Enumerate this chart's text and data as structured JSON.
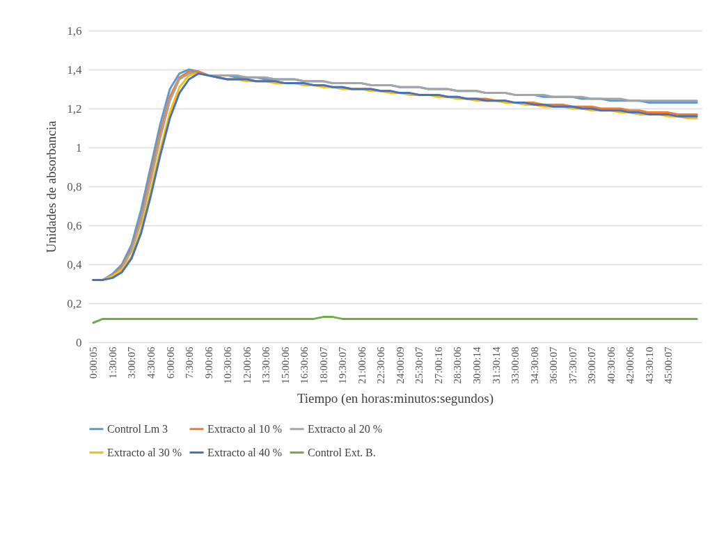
{
  "chart_data": {
    "type": "line",
    "xlabel": "Tiempo (en horas:minutos:segundos)",
    "ylabel": "Unidades de absorbancia",
    "categories": [
      "0:00:05",
      null,
      "1:30:06",
      null,
      "3:00:07",
      null,
      "4:30:06",
      null,
      "6:00:06",
      null,
      "7:30:06",
      null,
      "9:00:06",
      null,
      "10:30:06",
      null,
      "12:00:06",
      null,
      "13:30:06",
      null,
      "15:00:06",
      null,
      "16:30:06",
      null,
      "18:00:07",
      null,
      "19:30:07",
      null,
      "21:00:06",
      null,
      "22:30:06",
      null,
      "24:00:09",
      null,
      "25:30:07",
      null,
      "27:00:16",
      null,
      "28:30:06",
      null,
      "30:00:14",
      null,
      "31:30:14",
      null,
      "33:00:08",
      null,
      "34:30:08",
      null,
      "36:00:07",
      null,
      "37:30:07",
      null,
      "39:00:07",
      null,
      "40:30:06",
      null,
      "42:00:06",
      null,
      "43:30:10",
      null,
      "45:00:07",
      null,
      null,
      null
    ],
    "ylim": [
      0,
      1.6
    ],
    "yticks": [
      0,
      {
        "value": 0.2,
        "label": "0,2"
      },
      {
        "value": 0.4,
        "label": "0,4"
      },
      {
        "value": 0.6,
        "label": "0,6"
      },
      {
        "value": 0.8,
        "label": "0,8"
      },
      1,
      {
        "value": 1.2,
        "label": "1,2"
      },
      {
        "value": 1.4,
        "label": "1,4"
      },
      {
        "value": 1.6,
        "label": "1,6"
      }
    ],
    "grid": "y",
    "legend": "bottom",
    "marker": "none",
    "line_style": "solid",
    "series": [
      {
        "name": "Control Lm 3",
        "color": "#5b9bd5",
        "values": [
          0.32,
          0.32,
          0.35,
          0.4,
          0.5,
          0.68,
          0.9,
          1.12,
          1.3,
          1.38,
          1.4,
          1.39,
          1.37,
          1.37,
          1.37,
          1.36,
          1.36,
          1.36,
          1.35,
          1.35,
          1.35,
          1.35,
          1.34,
          1.34,
          1.34,
          1.33,
          1.33,
          1.33,
          1.33,
          1.32,
          1.32,
          1.32,
          1.31,
          1.31,
          1.31,
          1.3,
          1.3,
          1.3,
          1.29,
          1.29,
          1.29,
          1.28,
          1.28,
          1.28,
          1.27,
          1.27,
          1.27,
          1.26,
          1.26,
          1.26,
          1.26,
          1.25,
          1.25,
          1.25,
          1.24,
          1.24,
          1.24,
          1.24,
          1.23,
          1.23,
          1.23,
          1.23,
          1.23,
          1.23
        ]
      },
      {
        "name": "Extracto al 10 %",
        "color": "#ed7d31",
        "values": [
          0.32,
          0.32,
          0.34,
          0.39,
          0.48,
          0.64,
          0.86,
          1.08,
          1.26,
          1.36,
          1.39,
          1.39,
          1.37,
          1.36,
          1.35,
          1.35,
          1.35,
          1.34,
          1.34,
          1.34,
          1.33,
          1.33,
          1.33,
          1.32,
          1.32,
          1.31,
          1.31,
          1.3,
          1.3,
          1.3,
          1.29,
          1.29,
          1.28,
          1.28,
          1.27,
          1.27,
          1.27,
          1.26,
          1.26,
          1.25,
          1.25,
          1.25,
          1.24,
          1.24,
          1.23,
          1.23,
          1.23,
          1.22,
          1.22,
          1.22,
          1.21,
          1.21,
          1.21,
          1.2,
          1.2,
          1.2,
          1.19,
          1.19,
          1.18,
          1.18,
          1.18,
          1.17,
          1.17,
          1.17
        ]
      },
      {
        "name": "Extracto al 20 %",
        "color": "#a5a5a5",
        "values": [
          0.32,
          0.32,
          0.34,
          0.38,
          0.47,
          0.62,
          0.83,
          1.05,
          1.24,
          1.35,
          1.38,
          1.38,
          1.37,
          1.37,
          1.37,
          1.37,
          1.36,
          1.36,
          1.36,
          1.35,
          1.35,
          1.35,
          1.34,
          1.34,
          1.34,
          1.33,
          1.33,
          1.33,
          1.33,
          1.32,
          1.32,
          1.32,
          1.31,
          1.31,
          1.31,
          1.3,
          1.3,
          1.3,
          1.29,
          1.29,
          1.29,
          1.28,
          1.28,
          1.28,
          1.27,
          1.27,
          1.27,
          1.27,
          1.26,
          1.26,
          1.26,
          1.26,
          1.25,
          1.25,
          1.25,
          1.25,
          1.24,
          1.24,
          1.24,
          1.24,
          1.24,
          1.24,
          1.24,
          1.24
        ]
      },
      {
        "name": "Extracto al 30 %",
        "color": "#ffc000",
        "values": [
          0.32,
          0.32,
          0.34,
          0.37,
          0.44,
          0.58,
          0.78,
          0.99,
          1.18,
          1.31,
          1.37,
          1.38,
          1.37,
          1.36,
          1.35,
          1.35,
          1.34,
          1.34,
          1.34,
          1.33,
          1.33,
          1.33,
          1.32,
          1.32,
          1.31,
          1.31,
          1.3,
          1.3,
          1.3,
          1.29,
          1.29,
          1.28,
          1.28,
          1.27,
          1.27,
          1.27,
          1.26,
          1.26,
          1.25,
          1.25,
          1.24,
          1.24,
          1.24,
          1.23,
          1.23,
          1.22,
          1.22,
          1.21,
          1.21,
          1.21,
          1.2,
          1.2,
          1.19,
          1.19,
          1.19,
          1.18,
          1.18,
          1.17,
          1.17,
          1.17,
          1.16,
          1.16,
          1.15,
          1.15
        ]
      },
      {
        "name": "Extracto al 40 %",
        "color": "#4472c4",
        "values": [
          0.32,
          0.32,
          0.33,
          0.36,
          0.43,
          0.56,
          0.75,
          0.96,
          1.15,
          1.28,
          1.35,
          1.38,
          1.37,
          1.36,
          1.35,
          1.35,
          1.35,
          1.34,
          1.34,
          1.34,
          1.33,
          1.33,
          1.33,
          1.32,
          1.32,
          1.31,
          1.31,
          1.3,
          1.3,
          1.3,
          1.29,
          1.29,
          1.28,
          1.28,
          1.27,
          1.27,
          1.27,
          1.26,
          1.26,
          1.25,
          1.25,
          1.24,
          1.24,
          1.24,
          1.23,
          1.23,
          1.22,
          1.22,
          1.21,
          1.21,
          1.21,
          1.2,
          1.2,
          1.19,
          1.19,
          1.19,
          1.18,
          1.18,
          1.17,
          1.17,
          1.17,
          1.16,
          1.16,
          1.16
        ]
      },
      {
        "name": "Control Ext. B.",
        "color": "#70ad47",
        "values": [
          0.1,
          0.12,
          0.12,
          0.12,
          0.12,
          0.12,
          0.12,
          0.12,
          0.12,
          0.12,
          0.12,
          0.12,
          0.12,
          0.12,
          0.12,
          0.12,
          0.12,
          0.12,
          0.12,
          0.12,
          0.12,
          0.12,
          0.12,
          0.12,
          0.13,
          0.13,
          0.12,
          0.12,
          0.12,
          0.12,
          0.12,
          0.12,
          0.12,
          0.12,
          0.12,
          0.12,
          0.12,
          0.12,
          0.12,
          0.12,
          0.12,
          0.12,
          0.12,
          0.12,
          0.12,
          0.12,
          0.12,
          0.12,
          0.12,
          0.12,
          0.12,
          0.12,
          0.12,
          0.12,
          0.12,
          0.12,
          0.12,
          0.12,
          0.12,
          0.12,
          0.12,
          0.12,
          0.12,
          0.12
        ]
      }
    ]
  }
}
